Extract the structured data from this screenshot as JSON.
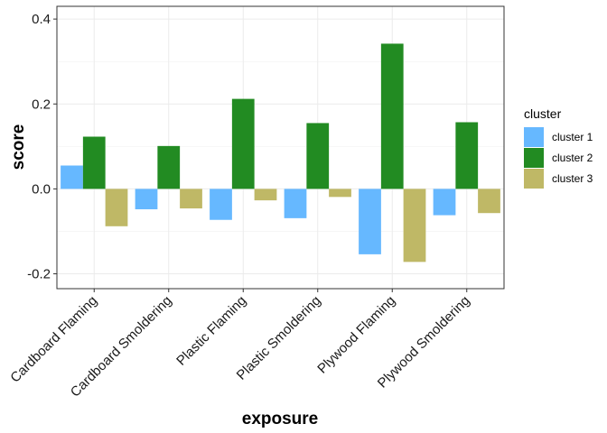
{
  "chart_data": {
    "type": "bar",
    "xlabel": "exposure",
    "ylabel": "score",
    "categories": [
      "Cardboard Flaming",
      "Cardboard Smoldering",
      "Plastic Flaming",
      "Plastic Smoldering",
      "Plywood Flaming",
      "Plywood Smoldering"
    ],
    "series": [
      {
        "name": "cluster 1",
        "color": "#66b8ff",
        "values": [
          0.055,
          -0.048,
          -0.073,
          -0.069,
          -0.154,
          -0.062
        ]
      },
      {
        "name": "cluster 2",
        "color": "#228b22",
        "values": [
          0.123,
          0.101,
          0.212,
          0.155,
          0.342,
          0.157
        ]
      },
      {
        "name": "cluster 3",
        "color": "#bfb866",
        "values": [
          -0.088,
          -0.046,
          -0.027,
          -0.019,
          -0.172,
          -0.057
        ]
      }
    ],
    "yticks": [
      -0.2,
      0.0,
      0.2,
      0.4
    ],
    "ytick_labels": [
      "-0.2",
      "0.0",
      "0.2",
      "0.4"
    ],
    "ylim": [
      -0.235,
      0.43
    ],
    "legend": {
      "title": "cluster",
      "position": "right"
    },
    "grid": true
  }
}
